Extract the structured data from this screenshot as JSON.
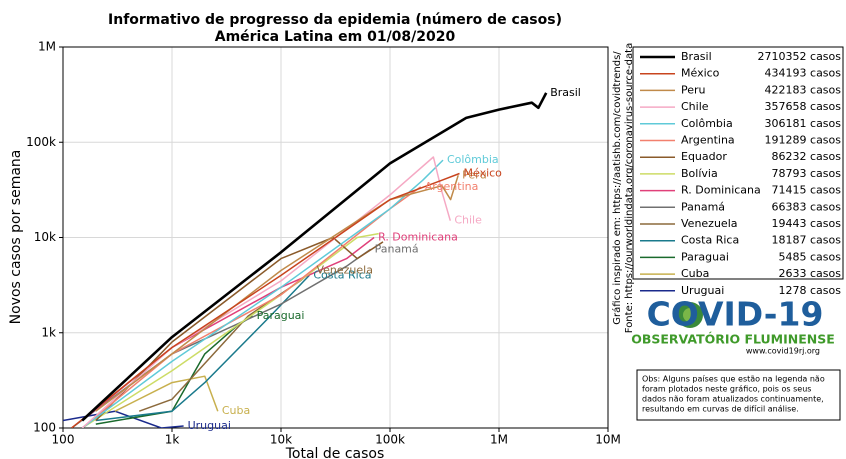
{
  "chart_data": {
    "type": "line",
    "title": "Informativo de progresso da epidemia (número de casos)",
    "subtitle": "América Latina em 01/08/2020",
    "xlabel": "Total de casos",
    "ylabel": "Novos casos por semana",
    "xscale": "log",
    "yscale": "log",
    "grid": true,
    "xlim": [
      100,
      10000000
    ],
    "ylim": [
      100,
      1000000
    ],
    "xticks": [
      100,
      {
        "value": 1000,
        "label": "1k"
      },
      {
        "value": 10000,
        "label": "10k"
      },
      {
        "value": 100000,
        "label": "100k"
      },
      {
        "value": 1000000,
        "label": "1M"
      },
      {
        "value": 10000000,
        "label": "10M"
      }
    ],
    "yticks": [
      100,
      {
        "value": 1000,
        "label": "1k"
      },
      {
        "value": 10000,
        "label": "10k"
      },
      {
        "value": 100000,
        "label": "100k"
      },
      {
        "value": 1000000,
        "label": "1M"
      }
    ],
    "series": [
      {
        "name": "Brasil",
        "color": "#000000",
        "width": 2.6,
        "end_label": true,
        "total": 2710352,
        "total_label": "2710352 casos",
        "x": [
          150,
          1000,
          10000,
          100000,
          500000,
          1000000,
          2000000,
          2300000,
          2710352
        ],
        "values": [
          120,
          900,
          7000,
          60000,
          180000,
          220000,
          260000,
          230000,
          330000
        ]
      },
      {
        "name": "México",
        "color": "#c8441e",
        "width": 1.5,
        "end_label": true,
        "total": 434193,
        "total_label": "434193 casos",
        "x": [
          120,
          1000,
          10000,
          100000,
          300000,
          434193
        ],
        "values": [
          100,
          700,
          4000,
          25000,
          40000,
          47000
        ]
      },
      {
        "name": "Peru",
        "color": "#c08a4a",
        "width": 1.5,
        "end_label": true,
        "total": 422183,
        "total_label": "422183 casos",
        "x": [
          200,
          1000,
          10000,
          100000,
          300000,
          360000,
          422183
        ],
        "values": [
          150,
          600,
          4500,
          25000,
          35000,
          25000,
          45000
        ]
      },
      {
        "name": "Chile",
        "color": "#f5a9c4",
        "width": 1.5,
        "end_label": true,
        "total": 357658,
        "total_label": "357658 casos",
        "x": [
          150,
          1000,
          10000,
          100000,
          250000,
          300000,
          357658
        ],
        "values": [
          100,
          700,
          3500,
          28000,
          70000,
          30000,
          15000
        ]
      },
      {
        "name": "Colômbia",
        "color": "#5fcad8",
        "width": 1.5,
        "end_label": true,
        "total": 306181,
        "total_label": "306181 casos",
        "x": [
          150,
          1000,
          10000,
          100000,
          200000,
          306181
        ],
        "values": [
          100,
          500,
          3000,
          20000,
          40000,
          65000
        ]
      },
      {
        "name": "Argentina",
        "color": "#f2806e",
        "width": 1.5,
        "end_label": true,
        "total": 191289,
        "total_label": "191289 casos",
        "x": [
          150,
          1000,
          10000,
          100000,
          191289
        ],
        "values": [
          100,
          600,
          2500,
          20000,
          34000
        ]
      },
      {
        "name": "Equador",
        "color": "#8a5a2a",
        "width": 1.5,
        "end_label": false,
        "total": 86232,
        "total_label": "86232 casos",
        "x": [
          200,
          1000,
          10000,
          30000,
          50000,
          86232
        ],
        "values": [
          120,
          800,
          6000,
          10000,
          6000,
          9000
        ]
      },
      {
        "name": "Bolívia",
        "color": "#cddc66",
        "width": 1.5,
        "end_label": false,
        "total": 78793,
        "total_label": "78793 casos",
        "x": [
          150,
          1000,
          10000,
          50000,
          78793
        ],
        "values": [
          100,
          400,
          2500,
          10000,
          11000
        ]
      },
      {
        "name": "R. Dominicana",
        "color": "#e0407a",
        "width": 1.5,
        "end_label": true,
        "total": 71415,
        "total_label": "71415 casos",
        "x": [
          150,
          1000,
          10000,
          40000,
          71415
        ],
        "values": [
          120,
          700,
          3000,
          6000,
          10000
        ]
      },
      {
        "name": "Panamá",
        "color": "#707070",
        "width": 1.5,
        "end_label": true,
        "total": 66383,
        "total_label": "66383 casos",
        "x": [
          120,
          1000,
          10000,
          40000,
          50000,
          66383
        ],
        "values": [
          100,
          600,
          2000,
          5000,
          6000,
          7500
        ]
      },
      {
        "name": "Venezuela",
        "color": "#8c6a3c",
        "width": 1.5,
        "end_label": true,
        "total": 19443,
        "total_label": "19443 casos",
        "x": [
          500,
          1000,
          5000,
          15000,
          19443
        ],
        "values": [
          150,
          200,
          1500,
          3500,
          4500
        ]
      },
      {
        "name": "Costa Rica",
        "color": "#1a7a8c",
        "width": 1.5,
        "end_label": true,
        "total": 18187,
        "total_label": "18187 casos",
        "x": [
          200,
          1000,
          2000,
          8000,
          18187
        ],
        "values": [
          120,
          150,
          300,
          1500,
          4000
        ]
      },
      {
        "name": "Paraguai",
        "color": "#1a6a2c",
        "width": 1.5,
        "end_label": true,
        "total": 5485,
        "total_label": "5485 casos",
        "x": [
          200,
          1000,
          2000,
          4000,
          5485
        ],
        "values": [
          110,
          150,
          600,
          1200,
          1500
        ]
      },
      {
        "name": "Cuba",
        "color": "#c8b04e",
        "width": 1.5,
        "end_label": true,
        "total": 2633,
        "total_label": "2633 casos",
        "x": [
          300,
          1000,
          2000,
          2633
        ],
        "values": [
          150,
          300,
          350,
          150
        ]
      },
      {
        "name": "Uruguai",
        "color": "#1a2a8c",
        "width": 1.5,
        "end_label": true,
        "total": 1278,
        "total_label": "1278 casos",
        "x": [
          100,
          300,
          800,
          1278
        ],
        "values": [
          120,
          150,
          100,
          105
        ]
      }
    ]
  },
  "side_notes": [
    "Gráfico inspirado em: https://aatishb.com/covidtrends/",
    "Fonte: https://ourworldindata.org/coronavirus-source-data"
  ],
  "logo": {
    "title": "COVID-19",
    "subtitle": "OBSERVATÓRIO FLUMINENSE",
    "url": "www.covid19rj.org"
  },
  "note": [
    "Obs: Alguns países que estão na legenda não",
    "foram plotados neste gráfico, pois os seus",
    "dados não foram atualizados continuamente,",
    "resultando em curvas de difícil análise."
  ]
}
